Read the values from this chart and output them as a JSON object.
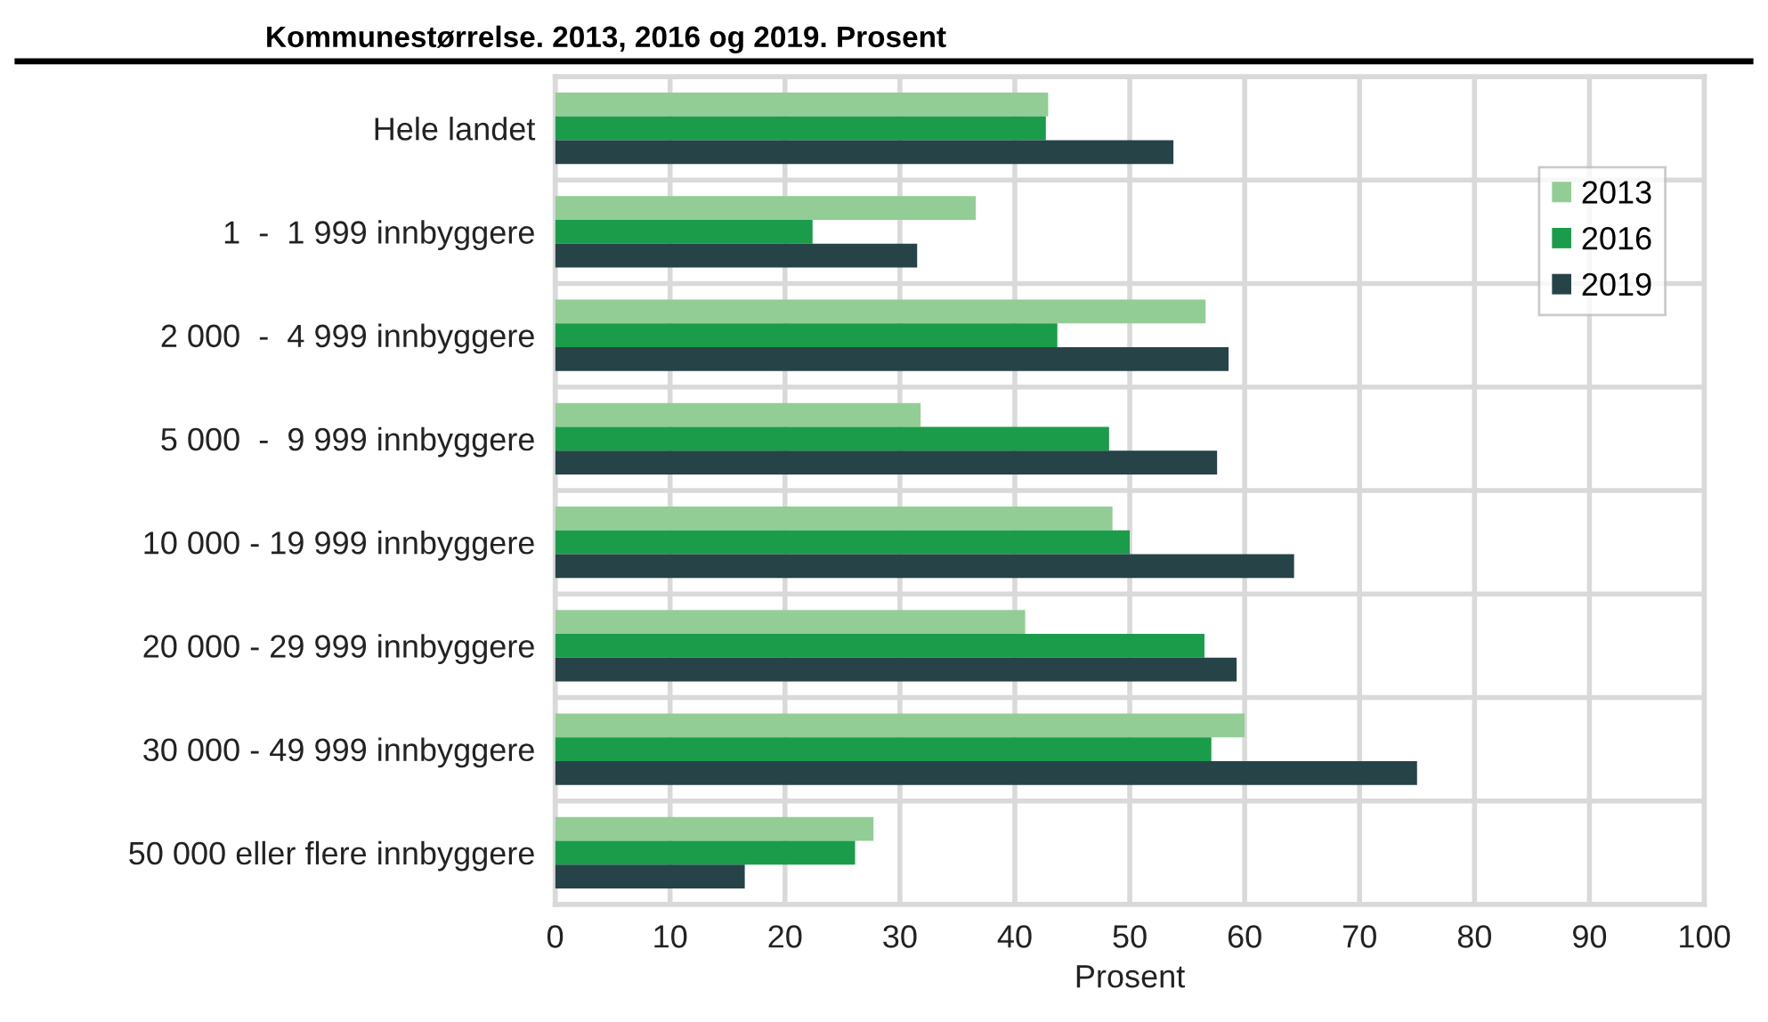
{
  "chart_data": {
    "type": "bar",
    "orientation": "horizontal",
    "title": "Kommunestørrelse. 2013, 2016 og 2019. Prosent",
    "xlabel": "Prosent",
    "categories": [
      "Hele landet",
      "1  -  1 999 innbyggere",
      "2 000  -  4 999 innbyggere",
      "5 000  -  9 999 innbyggere",
      "10 000 - 19 999 innbyggere",
      "20 000 - 29 999 innbyggere",
      "30 000 - 49 999 innbyggere",
      "50 000 eller flere innbyggere"
    ],
    "series": [
      {
        "name": "2013",
        "color": "#92cd95",
        "values": [
          42.9,
          36.6,
          56.6,
          31.8,
          48.5,
          40.9,
          60.0,
          27.7
        ]
      },
      {
        "name": "2016",
        "color": "#1b9c4a",
        "values": [
          42.7,
          22.4,
          43.7,
          48.2,
          50.0,
          56.5,
          57.1,
          26.1
        ]
      },
      {
        "name": "2019",
        "color": "#264348",
        "values": [
          53.8,
          31.5,
          58.6,
          57.6,
          64.3,
          59.3,
          75.0,
          16.5
        ]
      }
    ],
    "xlim": [
      0,
      100
    ],
    "xticks": [
      0,
      10,
      20,
      30,
      40,
      50,
      60,
      70,
      80,
      90,
      100
    ],
    "grid": true,
    "legend": "top right"
  }
}
